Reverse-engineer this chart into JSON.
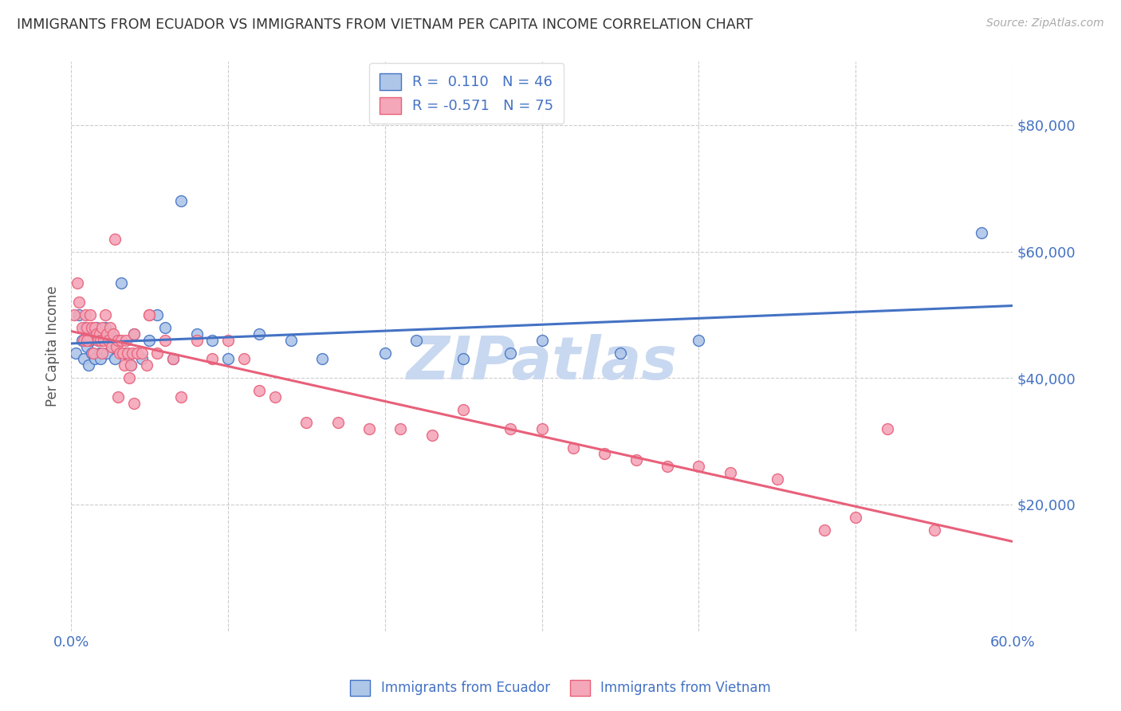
{
  "title": "IMMIGRANTS FROM ECUADOR VS IMMIGRANTS FROM VIETNAM PER CAPITA INCOME CORRELATION CHART",
  "source": "Source: ZipAtlas.com",
  "ylabel": "Per Capita Income",
  "xlim": [
    0.0,
    0.6
  ],
  "ylim": [
    0,
    90000
  ],
  "yticks": [
    20000,
    40000,
    60000,
    80000
  ],
  "ytick_labels": [
    "$20,000",
    "$40,000",
    "$60,000",
    "$80,000"
  ],
  "xticks": [
    0.0,
    0.1,
    0.2,
    0.3,
    0.4,
    0.5,
    0.6
  ],
  "xtick_labels": [
    "0.0%",
    "",
    "",
    "",
    "",
    "",
    "60.0%"
  ],
  "legend_r_ecuador": "R =  0.110",
  "legend_n_ecuador": "N = 46",
  "legend_r_vietnam": "R = -0.571",
  "legend_n_vietnam": "N = 75",
  "ecuador_color": "#aec6e8",
  "vietnam_color": "#f4a7b9",
  "ecuador_line_color": "#4472c4",
  "vietnam_line_color": "#e8607a",
  "watermark": "ZIPatlas",
  "watermark_color": "#c8d8f0",
  "ecuador_x": [
    0.003,
    0.005,
    0.007,
    0.008,
    0.009,
    0.01,
    0.011,
    0.012,
    0.013,
    0.014,
    0.015,
    0.016,
    0.017,
    0.018,
    0.019,
    0.02,
    0.022,
    0.023,
    0.025,
    0.027,
    0.028,
    0.03,
    0.032,
    0.035,
    0.038,
    0.04,
    0.045,
    0.05,
    0.055,
    0.06,
    0.065,
    0.07,
    0.08,
    0.09,
    0.1,
    0.12,
    0.14,
    0.16,
    0.2,
    0.22,
    0.25,
    0.28,
    0.3,
    0.35,
    0.4,
    0.58
  ],
  "ecuador_y": [
    44000,
    50000,
    46000,
    43000,
    48000,
    45000,
    42000,
    46000,
    44000,
    47000,
    43000,
    48000,
    46000,
    44000,
    43000,
    46000,
    48000,
    44000,
    47000,
    45000,
    43000,
    46000,
    55000,
    44000,
    42000,
    47000,
    43000,
    46000,
    50000,
    48000,
    43000,
    68000,
    47000,
    46000,
    43000,
    47000,
    46000,
    43000,
    44000,
    46000,
    43000,
    44000,
    46000,
    44000,
    46000,
    63000
  ],
  "vietnam_x": [
    0.002,
    0.004,
    0.005,
    0.007,
    0.008,
    0.009,
    0.01,
    0.011,
    0.012,
    0.013,
    0.014,
    0.015,
    0.016,
    0.017,
    0.018,
    0.019,
    0.02,
    0.021,
    0.022,
    0.023,
    0.024,
    0.025,
    0.026,
    0.027,
    0.028,
    0.029,
    0.03,
    0.031,
    0.032,
    0.033,
    0.034,
    0.035,
    0.036,
    0.037,
    0.038,
    0.039,
    0.04,
    0.042,
    0.045,
    0.048,
    0.05,
    0.055,
    0.06,
    0.065,
    0.07,
    0.08,
    0.09,
    0.1,
    0.11,
    0.12,
    0.13,
    0.15,
    0.17,
    0.19,
    0.21,
    0.23,
    0.25,
    0.28,
    0.3,
    0.32,
    0.34,
    0.36,
    0.38,
    0.4,
    0.42,
    0.45,
    0.48,
    0.5,
    0.52,
    0.55,
    0.01,
    0.02,
    0.03,
    0.04,
    0.05
  ],
  "vietnam_y": [
    50000,
    55000,
    52000,
    48000,
    46000,
    50000,
    48000,
    46000,
    50000,
    48000,
    44000,
    48000,
    47000,
    46000,
    47000,
    46000,
    48000,
    46000,
    50000,
    47000,
    46000,
    48000,
    45000,
    47000,
    62000,
    45000,
    46000,
    44000,
    46000,
    44000,
    42000,
    46000,
    44000,
    40000,
    42000,
    44000,
    47000,
    44000,
    44000,
    42000,
    50000,
    44000,
    46000,
    43000,
    37000,
    46000,
    43000,
    46000,
    43000,
    38000,
    37000,
    33000,
    33000,
    32000,
    32000,
    31000,
    35000,
    32000,
    32000,
    29000,
    28000,
    27000,
    26000,
    26000,
    25000,
    24000,
    16000,
    18000,
    32000,
    16000,
    46000,
    44000,
    37000,
    36000,
    50000
  ],
  "background_color": "#ffffff",
  "grid_color": "#cccccc",
  "title_color": "#333333",
  "axis_label_color": "#555555",
  "tick_color": "#4472c4"
}
